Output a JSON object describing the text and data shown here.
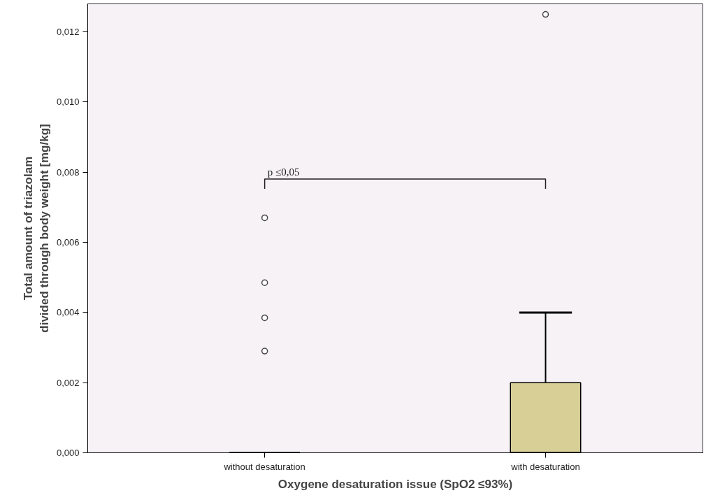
{
  "chart_data": {
    "type": "box",
    "xlabel": "Oxygene desaturation issue (SpO2 ≤93%)",
    "ylabel": "Total amount of triazolam\ndivided through body weight [mg/kg]",
    "categories": [
      "without desaturation",
      "with desaturation"
    ],
    "boxes": [
      {
        "low": 0,
        "q1": 0,
        "median": 0,
        "q3": 0,
        "high": 0,
        "outliers": [
          0.0029,
          0.00385,
          0.00485,
          0.0067
        ]
      },
      {
        "low": 0,
        "q1": 0,
        "median": 0,
        "q3": 0.002,
        "high": 0.004,
        "outliers": [
          0.0125
        ]
      }
    ],
    "colors": [
      "#000000",
      "#d8cf97"
    ],
    "ylim": [
      0,
      0.0128
    ],
    "yticks": [
      {
        "value": 0,
        "label": "0,000"
      },
      {
        "value": 0.002,
        "label": "0,002"
      },
      {
        "value": 0.004,
        "label": "0,004"
      },
      {
        "value": 0.006,
        "label": "0,006"
      },
      {
        "value": 0.008,
        "label": "0,008"
      },
      {
        "value": 0.01,
        "label": "0,010"
      },
      {
        "value": 0.012,
        "label": "0,012"
      }
    ],
    "grid": false,
    "marker": "circle",
    "annotations": [
      "p ≤0,05"
    ]
  }
}
